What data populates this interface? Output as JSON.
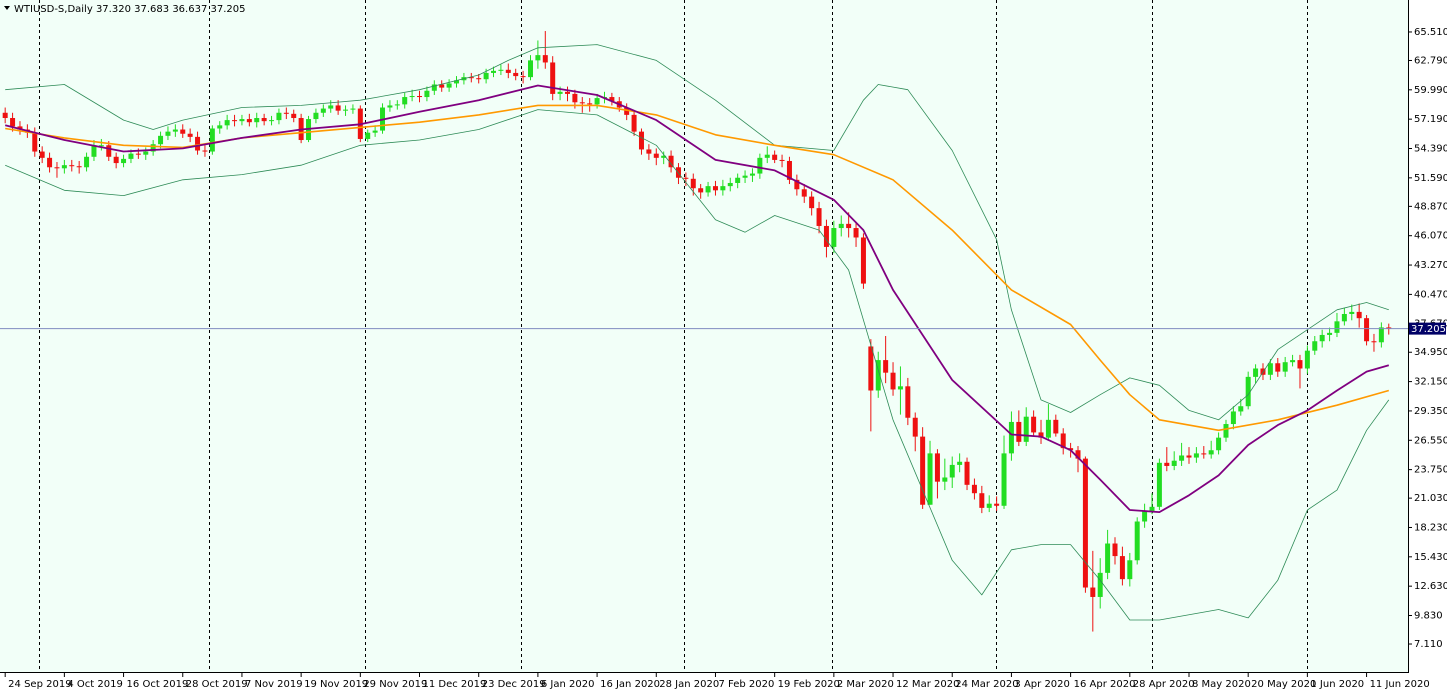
{
  "chart_data": {
    "type": "candlestick",
    "title": "WTIUSD-S,Daily",
    "last_ohlc_labels": [
      "37.320",
      "37.683",
      "36.637",
      "37.205"
    ],
    "background": "#f2fff8",
    "up_color": "#22dd22",
    "down_color": "#ee1111",
    "xlim": [
      -0.7,
      189.6
    ],
    "ylim": [
      4.44,
      68.56
    ],
    "xticks": [
      {
        "value": 0,
        "label": "24 Sep 2019"
      },
      {
        "value": 8,
        "label": "4 Oct 2019"
      },
      {
        "value": 16,
        "label": "16 Oct 2019"
      },
      {
        "value": 24,
        "label": "28 Oct 2019"
      },
      {
        "value": 32,
        "label": "7 Nov 2019"
      },
      {
        "value": 40,
        "label": "19 Nov 2019"
      },
      {
        "value": 48,
        "label": "29 Nov 2019"
      },
      {
        "value": 56,
        "label": "11 Dec 2019"
      },
      {
        "value": 64,
        "label": "23 Dec 2019"
      },
      {
        "value": 72,
        "label": "6 Jan 2020"
      },
      {
        "value": 80,
        "label": "16 Jan 2020"
      },
      {
        "value": 88,
        "label": "28 Jan 2020"
      },
      {
        "value": 96,
        "label": "7 Feb 2020"
      },
      {
        "value": 104,
        "label": "19 Feb 2020"
      },
      {
        "value": 112,
        "label": "2 Mar 2020"
      },
      {
        "value": 120,
        "label": "12 Mar 2020"
      },
      {
        "value": 128,
        "label": "24 Mar 2020"
      },
      {
        "value": 136,
        "label": "3 Apr 2020"
      },
      {
        "value": 144,
        "label": "16 Apr 2020"
      },
      {
        "value": 152,
        "label": "28 Apr 2020"
      },
      {
        "value": 160,
        "label": "8 May 2020"
      },
      {
        "value": 168,
        "label": "20 May 2020"
      },
      {
        "value": 176,
        "label": "1 Jun 2020"
      },
      {
        "value": 184,
        "label": "11 Jun 2020"
      }
    ],
    "yticks": [
      {
        "value": 65.51,
        "label": "65.510"
      },
      {
        "value": 62.79,
        "label": "62.790"
      },
      {
        "value": 59.99,
        "label": "59.990"
      },
      {
        "value": 57.19,
        "label": "57.190"
      },
      {
        "value": 54.39,
        "label": "54.390"
      },
      {
        "value": 51.59,
        "label": "51.590"
      },
      {
        "value": 48.87,
        "label": "48.870"
      },
      {
        "value": 46.07,
        "label": "46.070"
      },
      {
        "value": 43.27,
        "label": "43.270"
      },
      {
        "value": 40.47,
        "label": "40.470"
      },
      {
        "value": 37.67,
        "label": "37.670"
      },
      {
        "value": 34.95,
        "label": "34.950"
      },
      {
        "value": 32.15,
        "label": "32.150"
      },
      {
        "value": 29.35,
        "label": "29.350"
      },
      {
        "value": 26.55,
        "label": "26.550"
      },
      {
        "value": 23.75,
        "label": "23.750"
      },
      {
        "value": 21.03,
        "label": "21.030"
      },
      {
        "value": 18.23,
        "label": "18.230"
      },
      {
        "value": 15.43,
        "label": "15.430"
      },
      {
        "value": 12.63,
        "label": "12.630"
      },
      {
        "value": 9.83,
        "label": "9.830"
      },
      {
        "value": 7.11,
        "label": "7.110"
      }
    ],
    "price_line": {
      "value": 37.205,
      "label": "37.205",
      "color": "#7f8cc0"
    },
    "candles": {
      "open": [
        57.8,
        57.3,
        56.5,
        56.2,
        55.9,
        54.1,
        53.5,
        52.6,
        52.5,
        52.8,
        52.7,
        52.6,
        53.6,
        54.7,
        54.7,
        53.6,
        53.0,
        53.4,
        53.9,
        53.8,
        54.1,
        54.8,
        55.6,
        56.0,
        56.2,
        55.8,
        55.5,
        54.2,
        54.1,
        56.3,
        56.6,
        57.1,
        57.0,
        57.2,
        56.9,
        57.3,
        57.0,
        57.1,
        57.8,
        57.7,
        57.3,
        55.2,
        57.2,
        57.8,
        58.2,
        58.5,
        58.0,
        58.1,
        58.2,
        55.3,
        55.9,
        56.1,
        58.3,
        58.5,
        58.6,
        59.3,
        59.4,
        59.3,
        59.9,
        60.5,
        60.2,
        60.6,
        60.9,
        61.2,
        61.1,
        61.0,
        61.6,
        61.8,
        61.9,
        61.6,
        61.3,
        61.2,
        62.8,
        63.3,
        62.6,
        59.6,
        59.8,
        59.6,
        58.8,
        58.7,
        58.6,
        59.2,
        59.3,
        58.9,
        58.3,
        57.6,
        56.0,
        54.3,
        53.9,
        53.5,
        53.7,
        52.6,
        51.6,
        51.5,
        50.6,
        50.2,
        50.8,
        50.4,
        50.8,
        51.1,
        51.6,
        51.8,
        52.0,
        53.5,
        53.8,
        53.3,
        53.2,
        51.4,
        50.5,
        49.8,
        48.7,
        47.0,
        45.0,
        46.8,
        47.2,
        46.8,
        45.9,
        35.5,
        31.3,
        34.2,
        33.0,
        31.4,
        31.7,
        28.7,
        26.9,
        20.4,
        25.3,
        22.6,
        23.0,
        24.2,
        24.5,
        22.3,
        21.5,
        20.1,
        20.5,
        20.3,
        25.3,
        28.3,
        26.4,
        28.8,
        27.3,
        26.8,
        28.5,
        27.2,
        25.8,
        25.6,
        24.8,
        12.5,
        11.6,
        13.9,
        16.7,
        15.5,
        13.3,
        15.1,
        18.8,
        19.8,
        20.2,
        24.4,
        24.1,
        24.6,
        25.1,
        24.9,
        25.3,
        25.2,
        25.6,
        26.8,
        28.1,
        29.3,
        29.8,
        32.6,
        33.4,
        32.8,
        33.9,
        33.1,
        34.0,
        34.2,
        33.4,
        35.1,
        36.0,
        36.6,
        36.8,
        37.9,
        38.6,
        38.8,
        38.2,
        36.0,
        35.9,
        37.32
      ],
      "high": [
        58.3,
        57.8,
        57.0,
        56.7,
        56.4,
        54.6,
        54.0,
        53.1,
        53.3,
        53.3,
        53.2,
        54.0,
        55.2,
        55.3,
        55.1,
        54.0,
        53.8,
        54.3,
        54.4,
        54.5,
        55.2,
        56.0,
        56.5,
        56.7,
        56.7,
        56.3,
        56.0,
        54.7,
        56.6,
        57.0,
        57.6,
        57.6,
        57.6,
        57.7,
        57.8,
        57.7,
        57.5,
        58.2,
        58.3,
        58.1,
        57.7,
        57.5,
        58.2,
        58.6,
        59.0,
        59.0,
        58.5,
        58.6,
        58.5,
        56.2,
        56.6,
        58.7,
        59.0,
        59.0,
        59.7,
        60.0,
        59.9,
        60.3,
        60.9,
        60.9,
        61.0,
        61.3,
        61.6,
        61.6,
        61.5,
        62.0,
        62.2,
        62.4,
        62.5,
        62.0,
        61.8,
        63.3,
        64.7,
        65.6,
        63.2,
        60.3,
        60.3,
        60.0,
        59.3,
        59.2,
        59.6,
        59.8,
        59.7,
        59.3,
        58.7,
        57.9,
        56.3,
        54.8,
        54.4,
        54.1,
        54.2,
        53.0,
        52.1,
        52.0,
        51.0,
        51.2,
        51.3,
        51.4,
        51.6,
        52.0,
        52.3,
        52.5,
        53.9,
        54.6,
        54.2,
        53.8,
        53.6,
        51.9,
        51.0,
        50.3,
        49.3,
        47.6,
        47.5,
        48.0,
        48.3,
        47.4,
        46.3,
        36.2,
        35.0,
        36.5,
        34.0,
        33.6,
        32.5,
        29.2,
        27.8,
        26.5,
        25.7,
        24.8,
        25.0,
        25.3,
        24.9,
        22.9,
        22.2,
        21.3,
        21.2,
        27.0,
        29.3,
        29.4,
        29.7,
        29.4,
        28.5,
        30.0,
        29.0,
        27.7,
        26.3,
        26.0,
        25.0,
        16.0,
        15.3,
        18.0,
        17.3,
        16.4,
        15.8,
        19.2,
        20.5,
        21.5,
        24.8,
        25.9,
        25.5,
        26.3,
        25.9,
        25.9,
        26.0,
        26.5,
        27.3,
        28.5,
        29.8,
        30.5,
        33.1,
        33.8,
        33.9,
        34.3,
        34.4,
        34.5,
        34.7,
        34.7,
        35.6,
        36.5,
        37.1,
        37.3,
        38.7,
        39.2,
        39.5,
        39.6,
        38.5,
        36.7,
        37.8,
        37.683
      ],
      "low": [
        56.8,
        56.0,
        55.7,
        55.4,
        53.6,
        53.0,
        52.1,
        51.6,
        52.0,
        52.2,
        52.0,
        52.2,
        53.2,
        54.2,
        53.2,
        52.5,
        52.6,
        53.0,
        53.4,
        53.3,
        53.7,
        54.4,
        55.2,
        55.5,
        55.4,
        55.0,
        53.8,
        53.6,
        53.8,
        55.8,
        56.2,
        56.5,
        56.6,
        56.5,
        56.4,
        56.6,
        56.6,
        56.7,
        57.2,
        56.9,
        54.9,
        55.0,
        56.8,
        57.4,
        57.8,
        57.6,
        57.5,
        57.7,
        55.0,
        55.0,
        55.5,
        55.8,
        57.9,
        58.1,
        58.2,
        58.9,
        58.8,
        58.9,
        59.5,
        59.8,
        59.8,
        60.2,
        60.5,
        60.7,
        60.6,
        60.6,
        61.2,
        61.4,
        61.1,
        60.9,
        60.6,
        60.9,
        62.0,
        62.0,
        59.0,
        59.0,
        58.9,
        58.2,
        57.8,
        57.9,
        58.2,
        58.7,
        58.5,
        57.9,
        57.1,
        55.6,
        53.8,
        53.3,
        52.8,
        52.9,
        52.1,
        51.0,
        50.8,
        49.9,
        49.6,
        49.8,
        49.9,
        49.9,
        50.3,
        50.6,
        51.1,
        51.2,
        51.5,
        53.0,
        53.0,
        52.6,
        51.0,
        49.9,
        49.2,
        48.0,
        46.3,
        44.0,
        44.4,
        46.0,
        45.9,
        45.0,
        41.0,
        27.4,
        30.6,
        32.0,
        30.8,
        29.0,
        28.0,
        25.5,
        20.0,
        20.4,
        21.0,
        21.8,
        22.0,
        23.5,
        21.8,
        20.9,
        19.6,
        19.7,
        19.8,
        20.0,
        24.6,
        26.0,
        26.0,
        26.9,
        26.2,
        26.5,
        26.9,
        25.2,
        24.9,
        23.5,
        12.0,
        8.3,
        10.5,
        13.3,
        14.7,
        12.7,
        12.6,
        14.7,
        18.2,
        19.5,
        19.9,
        23.6,
        23.7,
        24.1,
        24.3,
        24.4,
        24.8,
        24.8,
        25.2,
        26.4,
        27.6,
        28.9,
        29.5,
        32.0,
        32.3,
        32.3,
        32.6,
        32.6,
        33.6,
        31.5,
        32.9,
        34.7,
        35.4,
        36.0,
        36.4,
        37.5,
        38.0,
        37.3,
        35.6,
        35.0,
        35.4,
        36.637
      ],
      "close": [
        57.3,
        56.5,
        56.2,
        55.9,
        54.1,
        53.5,
        52.6,
        52.5,
        52.8,
        52.7,
        52.6,
        53.6,
        54.7,
        54.7,
        53.6,
        53.0,
        53.4,
        53.9,
        53.8,
        54.1,
        54.8,
        55.6,
        56.0,
        56.2,
        55.8,
        55.5,
        54.2,
        54.1,
        56.3,
        56.6,
        57.1,
        57.0,
        57.2,
        56.9,
        57.3,
        57.0,
        57.1,
        57.8,
        57.7,
        57.3,
        55.2,
        57.2,
        57.8,
        58.2,
        58.5,
        58.0,
        58.1,
        58.2,
        55.3,
        55.9,
        56.1,
        58.3,
        58.5,
        58.6,
        59.3,
        59.4,
        59.3,
        59.9,
        60.5,
        60.2,
        60.6,
        60.9,
        61.2,
        61.1,
        61.0,
        61.6,
        61.8,
        61.9,
        61.6,
        61.3,
        61.2,
        62.8,
        63.3,
        62.6,
        59.6,
        59.8,
        59.6,
        58.8,
        58.7,
        58.6,
        59.2,
        59.3,
        58.9,
        58.3,
        57.6,
        56.0,
        54.3,
        53.9,
        53.5,
        53.7,
        52.6,
        51.6,
        51.5,
        50.6,
        50.2,
        50.8,
        50.4,
        50.8,
        51.1,
        51.6,
        51.8,
        52.0,
        53.5,
        53.8,
        53.3,
        53.2,
        51.4,
        50.5,
        49.8,
        48.7,
        47.0,
        45.0,
        46.8,
        47.2,
        46.8,
        45.9,
        41.5,
        31.3,
        34.2,
        33.0,
        31.4,
        31.7,
        28.7,
        26.9,
        20.4,
        25.3,
        22.6,
        23.0,
        24.2,
        24.5,
        22.3,
        21.5,
        20.1,
        20.5,
        20.3,
        25.3,
        28.3,
        26.4,
        28.8,
        27.3,
        26.8,
        28.5,
        27.2,
        25.8,
        25.6,
        24.8,
        12.5,
        11.6,
        13.9,
        16.7,
        15.5,
        13.3,
        15.1,
        18.8,
        19.8,
        20.2,
        24.4,
        24.1,
        24.6,
        25.1,
        24.9,
        25.3,
        25.2,
        25.6,
        26.8,
        28.1,
        29.3,
        29.8,
        32.6,
        33.4,
        32.8,
        33.9,
        33.1,
        34.0,
        34.2,
        33.4,
        35.1,
        36.0,
        36.6,
        36.8,
        37.9,
        38.6,
        38.8,
        38.2,
        36.0,
        35.9,
        37.32,
        37.205
      ]
    },
    "overlays": [
      {
        "color": "#2e8b57",
        "width": 0.8,
        "x": [
          0,
          8,
          16,
          20,
          24,
          32,
          40,
          48,
          56,
          64,
          68,
          72,
          80,
          88,
          96,
          104,
          112,
          116,
          118,
          122,
          128,
          134,
          136,
          140,
          144,
          148,
          152,
          156,
          160,
          164,
          168,
          172,
          176,
          180,
          184,
          187
        ],
        "values": [
          60.0,
          60.5,
          57.1,
          56.2,
          57.1,
          58.3,
          58.5,
          59.0,
          60.0,
          61.4,
          62.8,
          64.0,
          64.3,
          62.8,
          59.0,
          54.7,
          54.2,
          59.0,
          60.5,
          60.0,
          54.2,
          45.7,
          39.0,
          30.4,
          29.2,
          30.9,
          32.5,
          31.8,
          29.4,
          28.5,
          30.9,
          35.2,
          37.1,
          39.0,
          39.7,
          39.0
        ]
      },
      {
        "color": "#2e8b57",
        "width": 0.8,
        "x": [
          0,
          8,
          16,
          24,
          32,
          40,
          48,
          56,
          64,
          72,
          80,
          88,
          96,
          100,
          104,
          110,
          114,
          120,
          128,
          132,
          136,
          140,
          144,
          148,
          152,
          156,
          164,
          168,
          172,
          176,
          180,
          184,
          187
        ],
        "values": [
          52.8,
          50.4,
          49.9,
          51.4,
          51.9,
          52.8,
          54.7,
          55.2,
          56.2,
          58.1,
          57.6,
          54.7,
          47.6,
          46.4,
          48.0,
          46.6,
          42.8,
          28.5,
          15.1,
          11.8,
          16.1,
          16.6,
          16.6,
          13.2,
          9.4,
          9.4,
          10.4,
          9.6,
          13.2,
          19.9,
          21.8,
          27.5,
          30.4
        ]
      },
      {
        "color": "#ff9900",
        "width": 1.6,
        "x": [
          0,
          8,
          16,
          24,
          32,
          40,
          48,
          56,
          64,
          72,
          80,
          88,
          96,
          104,
          112,
          120,
          128,
          136,
          144,
          148,
          152,
          156,
          164,
          172,
          180,
          187
        ],
        "values": [
          56.3,
          55.4,
          54.7,
          54.5,
          55.4,
          55.9,
          56.4,
          56.9,
          57.6,
          58.5,
          58.5,
          57.6,
          55.7,
          54.7,
          53.8,
          51.4,
          46.6,
          40.9,
          37.6,
          34.2,
          30.9,
          28.5,
          27.5,
          28.5,
          29.9,
          31.3
        ]
      },
      {
        "color": "#800080",
        "width": 1.8,
        "x": [
          0,
          8,
          16,
          24,
          32,
          40,
          48,
          56,
          64,
          72,
          80,
          88,
          96,
          104,
          112,
          116,
          120,
          128,
          136,
          140,
          144,
          148,
          152,
          156,
          160,
          164,
          168,
          172,
          176,
          180,
          184,
          187
        ],
        "values": [
          56.6,
          55.2,
          54.1,
          54.4,
          55.4,
          56.2,
          56.7,
          57.9,
          59.0,
          60.4,
          59.5,
          57.1,
          53.3,
          52.3,
          49.5,
          46.6,
          40.9,
          32.3,
          27.1,
          26.9,
          25.6,
          22.8,
          19.9,
          19.7,
          21.3,
          23.2,
          26.1,
          28.0,
          29.4,
          31.3,
          33.1,
          33.7
        ]
      }
    ]
  }
}
